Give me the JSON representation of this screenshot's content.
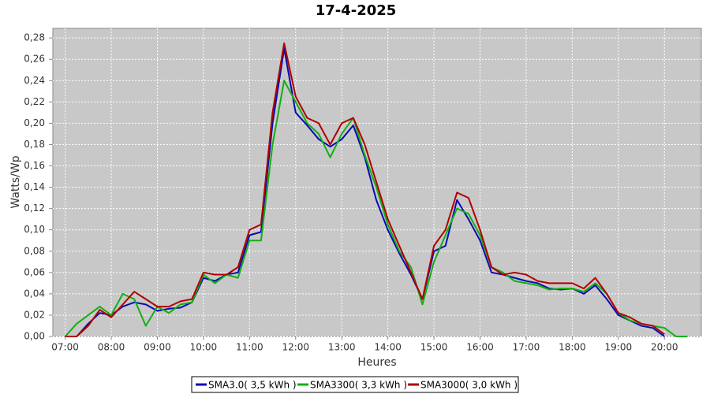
{
  "chart_data": {
    "type": "line",
    "title": "17-4-2025",
    "x_label": "Heures",
    "y_label": "Watts/Wp",
    "x": [
      "07:00",
      "07:15",
      "07:30",
      "07:45",
      "08:00",
      "08:15",
      "08:30",
      "08:45",
      "09:00",
      "09:15",
      "09:30",
      "09:45",
      "10:00",
      "10:15",
      "10:30",
      "10:45",
      "11:00",
      "11:15",
      "11:30",
      "11:45",
      "12:00",
      "12:15",
      "12:30",
      "12:45",
      "13:00",
      "13:15",
      "13:30",
      "13:45",
      "14:00",
      "14:15",
      "14:30",
      "14:45",
      "15:00",
      "15:15",
      "15:30",
      "15:45",
      "16:00",
      "16:15",
      "16:30",
      "16:45",
      "17:00",
      "17:15",
      "17:30",
      "17:45",
      "18:00",
      "18:15",
      "18:30",
      "18:45",
      "19:00",
      "19:15",
      "19:30",
      "19:45",
      "20:00",
      "20:15",
      "20:30"
    ],
    "series": [
      {
        "name": "SMA3.0( 3,5 kWh )",
        "color": "#0a0ab4",
        "values": [
          0,
          0,
          0.012,
          0.022,
          0.02,
          0.028,
          0.032,
          0.03,
          0.024,
          0.026,
          0.027,
          0.032,
          0.055,
          0.052,
          0.058,
          0.06,
          0.095,
          0.098,
          0.2,
          0.27,
          0.21,
          0.198,
          0.185,
          0.178,
          0.185,
          0.198,
          0.168,
          0.128,
          0.1,
          0.078,
          0.058,
          0.035,
          0.08,
          0.085,
          0.128,
          0.11,
          0.09,
          0.06,
          0.058,
          0.055,
          0.052,
          0.05,
          0.045,
          0.044,
          0.045,
          0.04,
          0.048,
          0.035,
          0.02,
          0.015,
          0.01,
          0.008,
          0,
          null,
          null
        ]
      },
      {
        "name": "SMA3300( 3,3 kWh )",
        "color": "#10b010",
        "values": [
          0,
          0.012,
          0.02,
          0.028,
          0.02,
          0.04,
          0.035,
          0.01,
          0.028,
          0.022,
          0.03,
          0.032,
          0.058,
          0.05,
          0.058,
          0.055,
          0.09,
          0.09,
          0.18,
          0.24,
          0.22,
          0.2,
          0.19,
          0.168,
          0.19,
          0.205,
          0.17,
          0.14,
          0.105,
          0.08,
          0.065,
          0.03,
          0.07,
          0.095,
          0.12,
          0.115,
          0.095,
          0.065,
          0.06,
          0.052,
          0.05,
          0.048,
          0.044,
          0.045,
          0.045,
          0.042,
          0.05,
          0.04,
          0.022,
          0.015,
          0.012,
          0.01,
          0.008,
          0,
          0
        ]
      },
      {
        "name": "SMA3000( 3,0 kWh )",
        "color": "#b00000",
        "values": [
          0,
          0,
          0.01,
          0.025,
          0.018,
          0.03,
          0.042,
          0.035,
          0.028,
          0.028,
          0.033,
          0.035,
          0.06,
          0.058,
          0.058,
          0.065,
          0.1,
          0.105,
          0.21,
          0.275,
          0.225,
          0.205,
          0.2,
          0.18,
          0.2,
          0.205,
          0.18,
          0.145,
          0.11,
          0.085,
          0.06,
          0.035,
          0.085,
          0.1,
          0.135,
          0.13,
          0.1,
          0.065,
          0.058,
          0.06,
          0.058,
          0.052,
          0.05,
          0.05,
          0.05,
          0.045,
          0.055,
          0.04,
          0.022,
          0.018,
          0.012,
          0.01,
          0.002,
          null,
          null
        ]
      }
    ],
    "xlim": [
      "06:44",
      "20:48"
    ],
    "xticks": [
      "07:00",
      "08:00",
      "09:00",
      "10:00",
      "11:00",
      "12:00",
      "13:00",
      "14:00",
      "15:00",
      "16:00",
      "17:00",
      "18:00",
      "19:00",
      "20:00"
    ],
    "ylim": [
      0,
      0.289
    ],
    "yticks": [
      {
        "value": 0,
        "label": "0,00"
      },
      {
        "value": 0.02,
        "label": "0,02"
      },
      {
        "value": 0.04,
        "label": "0,04"
      },
      {
        "value": 0.06,
        "label": "0,06"
      },
      {
        "value": 0.08,
        "label": "0,08"
      },
      {
        "value": 0.1,
        "label": "0,10"
      },
      {
        "value": 0.12,
        "label": "0,12"
      },
      {
        "value": 0.14,
        "label": "0,14"
      },
      {
        "value": 0.16,
        "label": "0,16"
      },
      {
        "value": 0.18,
        "label": "0,18"
      },
      {
        "value": 0.2,
        "label": "0,20"
      },
      {
        "value": 0.22,
        "label": "0,22"
      },
      {
        "value": 0.24,
        "label": "0,24"
      },
      {
        "value": 0.26,
        "label": "0,26"
      },
      {
        "value": 0.28,
        "label": "0,28"
      }
    ],
    "grid": true,
    "legend": "bottom"
  }
}
